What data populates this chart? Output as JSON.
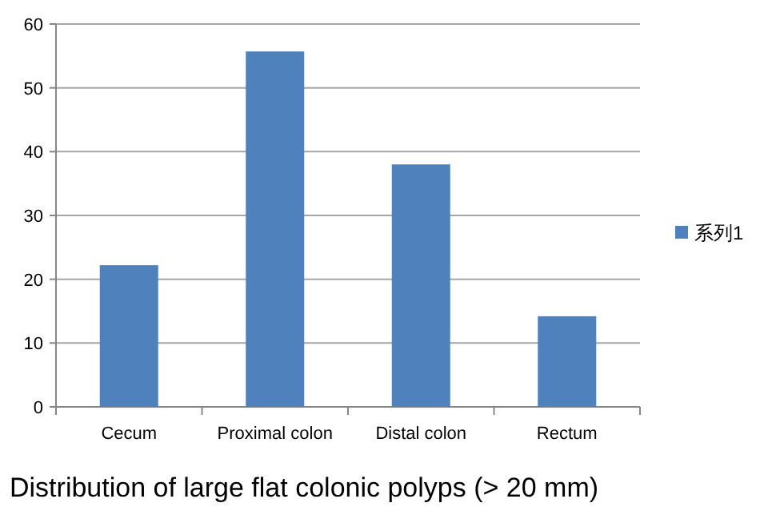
{
  "chart_data": {
    "type": "bar",
    "title": "Distribution of large flat colonic polyps (> 20 mm)",
    "categories": [
      "Cecum",
      "Proximal colon",
      "Distal colon",
      "Rectum"
    ],
    "series": [
      {
        "name": "系列1",
        "color": "#4f81bd",
        "values": [
          22.2,
          55.7,
          38.0,
          14.2
        ]
      }
    ],
    "ylim": [
      0,
      60
    ],
    "yticks": [
      0,
      10,
      20,
      30,
      40,
      50,
      60
    ],
    "grid": "y",
    "legend": "right"
  }
}
